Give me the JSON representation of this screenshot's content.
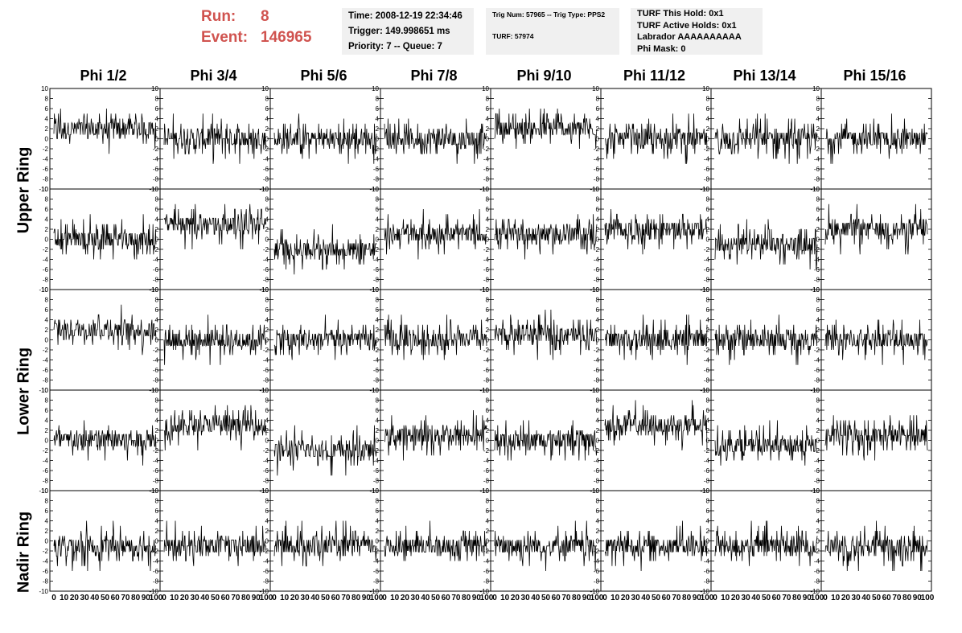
{
  "header": {
    "run_label": "Run:",
    "run_value": "8",
    "event_label": "Event:",
    "event_value": "146965"
  },
  "info_time": {
    "time": "Time: 2008-12-19 22:34:46",
    "trigger": "Trigger: 149.998651 ms",
    "priority": "Priority: 7 -- Queue: 7"
  },
  "info_trig": {
    "trig": "Trig Num: 57965 -- Trig Type: PPS2",
    "turf": "TURF: 57974"
  },
  "info_turf": {
    "this_hold": "TURF This Hold: 0x1",
    "active_holds": "TURF Active Holds: 0x1",
    "labrador": "Labrador AAAAAAAAAA",
    "phi_mask": "Phi Mask: 0"
  },
  "columns": [
    "Phi 1/2",
    "Phi 3/4",
    "Phi 5/6",
    "Phi 7/8",
    "Phi 9/10",
    "Phi 11/12",
    "Phi 13/14",
    "Phi 15/16"
  ],
  "rings": [
    "Upper Ring",
    "Lower Ring",
    "Nadir Ring"
  ],
  "y_ticks": [
    "10",
    "8",
    "6",
    "4",
    "2",
    "0",
    "-2",
    "-4",
    "-6",
    "-8",
    "-10"
  ],
  "x_ticks": [
    "0",
    "10",
    "20",
    "30",
    "40",
    "50",
    "60",
    "70",
    "80",
    "90",
    "100"
  ],
  "panel_offsets": [
    [
      2,
      0,
      0,
      0,
      2,
      0,
      0,
      0
    ],
    [
      0,
      3,
      -2,
      1,
      1,
      2,
      -1,
      2
    ],
    [
      2,
      0,
      0,
      0,
      1,
      0,
      0,
      0
    ],
    [
      0,
      3,
      -2,
      1,
      0,
      3,
      -1,
      1
    ],
    [
      -1,
      -1,
      -1,
      -1,
      -1,
      -1,
      -1,
      -1
    ]
  ],
  "colors": {
    "header_red": "#d0534f",
    "info_bg": "#f0f0f0",
    "trace": "#000000"
  }
}
